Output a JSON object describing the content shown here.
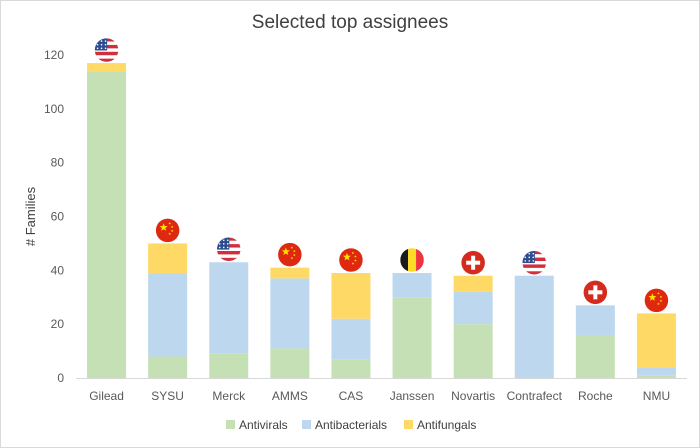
{
  "chart_data": {
    "type": "bar",
    "stacked": true,
    "title": "Selected top assignees",
    "xlabel": "",
    "ylabel": "# Families",
    "ylim": [
      0,
      120
    ],
    "yticks": [
      0,
      20,
      40,
      60,
      80,
      100,
      120
    ],
    "grid": false,
    "legend_position": "bottom",
    "categories": [
      "Gilead",
      "SYSU",
      "Merck",
      "AMMS",
      "CAS",
      "Janssen",
      "Novartis",
      "Contrafect",
      "Roche",
      "NMU"
    ],
    "country_flags": [
      "us-flag",
      "china-flag",
      "us-flag",
      "china-flag",
      "china-flag",
      "belgium-flag",
      "switzerland-flag",
      "us-flag",
      "switzerland-flag",
      "china-flag"
    ],
    "series": [
      {
        "name": "Antivirals",
        "color": "#c5e0b4",
        "values": [
          114,
          8,
          9,
          11,
          7,
          30,
          20,
          0,
          16,
          1
        ]
      },
      {
        "name": "Antibacterials",
        "color": "#bdd7ee",
        "values": [
          0,
          31,
          34,
          26,
          15,
          9,
          12,
          38,
          11,
          3
        ]
      },
      {
        "name": "Antifungals",
        "color": "#ffd966",
        "values": [
          3,
          11,
          0,
          4,
          17,
          0,
          6,
          0,
          0,
          20
        ]
      }
    ]
  }
}
